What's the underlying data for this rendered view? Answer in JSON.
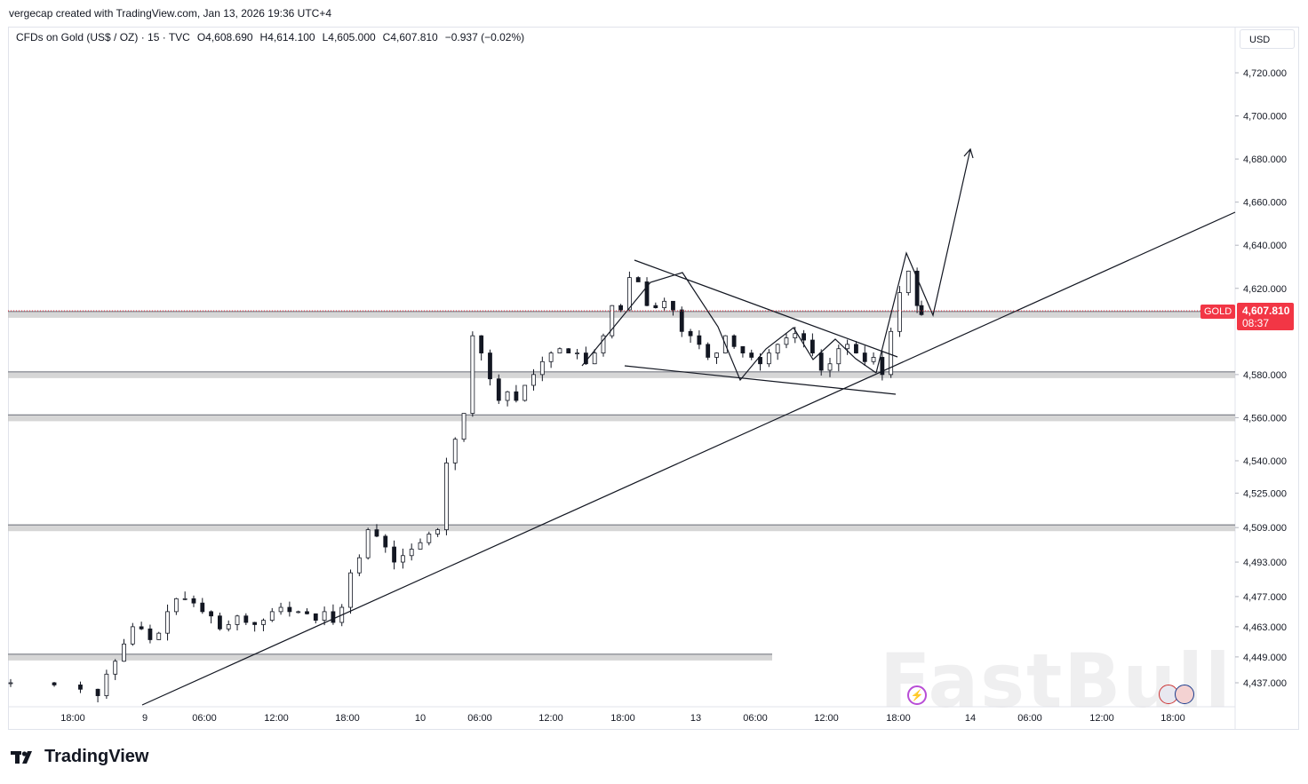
{
  "header": {
    "caption": "vergecap created with TradingView.com, Jan 13, 2026 19:36 UTC+4"
  },
  "legend": {
    "symbol": "CFDs on Gold (US$ / OZ) · 15 · TVC",
    "open": "O4,608.690",
    "high": "H4,614.100",
    "low": "L4,605.000",
    "close": "C4,607.810",
    "change": "−0.937 (−0.02%)"
  },
  "currency": "USD",
  "price_badge": {
    "symbol": "GOLD",
    "price": "4,607.810",
    "countdown": "08:37",
    "color": "#f23645"
  },
  "logo_text": "TradingView",
  "watermark": "FastBull",
  "chart_data": {
    "type": "candlestick",
    "title": "",
    "y_ticks": [
      "4,720.000",
      "4,700.000",
      "4,680.000",
      "4,660.000",
      "4,640.000",
      "4,620.000",
      "4,580.000",
      "4,560.000",
      "4,540.000",
      "4,525.000",
      "4,509.000",
      "4,493.000",
      "4,477.000",
      "4,463.000",
      "4,449.000",
      "4,437.000"
    ],
    "x_ticks": [
      "18:00",
      "9",
      "06:00",
      "12:00",
      "18:00",
      "10",
      "06:00",
      "12:00",
      "18:00",
      "13",
      "06:00",
      "12:00",
      "18:00",
      "14",
      "06:00",
      "12:00",
      "18:00"
    ],
    "price_path": [
      [
        0,
        4437
      ],
      [
        10,
        4436
      ],
      [
        16,
        4434
      ],
      [
        20,
        4431
      ],
      [
        22,
        4441
      ],
      [
        24,
        4447
      ],
      [
        26,
        4455
      ],
      [
        28,
        4463
      ],
      [
        30,
        4462
      ],
      [
        32,
        4457
      ],
      [
        34,
        4460
      ],
      [
        36,
        4470
      ],
      [
        38,
        4476
      ],
      [
        40,
        4476
      ],
      [
        42,
        4474
      ],
      [
        44,
        4470
      ],
      [
        46,
        4468
      ],
      [
        48,
        4462
      ],
      [
        50,
        4464
      ],
      [
        52,
        4468
      ],
      [
        54,
        4465
      ],
      [
        56,
        4464
      ],
      [
        58,
        4466
      ],
      [
        60,
        4470
      ],
      [
        62,
        4472
      ],
      [
        64,
        4470
      ],
      [
        66,
        4470
      ],
      [
        68,
        4469
      ],
      [
        70,
        4466
      ],
      [
        72,
        4470
      ],
      [
        74,
        4465
      ],
      [
        76,
        4472
      ],
      [
        78,
        4488
      ],
      [
        80,
        4495
      ],
      [
        82,
        4508
      ],
      [
        84,
        4505
      ],
      [
        86,
        4500
      ],
      [
        88,
        4493
      ],
      [
        90,
        4496
      ],
      [
        92,
        4499
      ],
      [
        94,
        4502
      ],
      [
        96,
        4506
      ],
      [
        98,
        4508
      ],
      [
        100,
        4539
      ],
      [
        102,
        4550
      ],
      [
        104,
        4562
      ],
      [
        106,
        4598
      ],
      [
        108,
        4590
      ],
      [
        110,
        4578
      ],
      [
        112,
        4568
      ],
      [
        114,
        4572
      ],
      [
        116,
        4568
      ],
      [
        118,
        4575
      ],
      [
        120,
        4580
      ],
      [
        122,
        4586
      ],
      [
        124,
        4590
      ],
      [
        126,
        4592
      ],
      [
        128,
        4590
      ],
      [
        130,
        4590
      ],
      [
        132,
        4585
      ],
      [
        134,
        4590
      ],
      [
        136,
        4598
      ],
      [
        138,
        4612
      ],
      [
        140,
        4610
      ],
      [
        142,
        4625
      ],
      [
        144,
        4623
      ],
      [
        146,
        4612
      ],
      [
        148,
        4611
      ],
      [
        150,
        4614
      ],
      [
        152,
        4610
      ],
      [
        154,
        4600
      ],
      [
        156,
        4598
      ],
      [
        158,
        4594
      ],
      [
        160,
        4588
      ],
      [
        162,
        4590
      ],
      [
        164,
        4598
      ],
      [
        166,
        4593
      ],
      [
        168,
        4590
      ],
      [
        170,
        4588
      ],
      [
        172,
        4585
      ],
      [
        174,
        4590
      ],
      [
        176,
        4594
      ],
      [
        178,
        4597
      ],
      [
        180,
        4599
      ],
      [
        182,
        4596
      ],
      [
        184,
        4590
      ],
      [
        186,
        4582
      ],
      [
        188,
        4585
      ],
      [
        190,
        4592
      ],
      [
        192,
        4594
      ],
      [
        194,
        4590
      ],
      [
        196,
        4586
      ],
      [
        198,
        4588
      ],
      [
        200,
        4580
      ],
      [
        202,
        4600
      ],
      [
        204,
        4618
      ],
      [
        206,
        4628
      ],
      [
        208,
        4612
      ],
      [
        209,
        4607.81
      ]
    ],
    "ylim": [
      4430,
      4730
    ],
    "support_zones": [
      4608,
      4580,
      4560,
      4509,
      4449
    ],
    "annotations": [
      "trendline",
      "falling-wedge",
      "target-arrow"
    ]
  }
}
